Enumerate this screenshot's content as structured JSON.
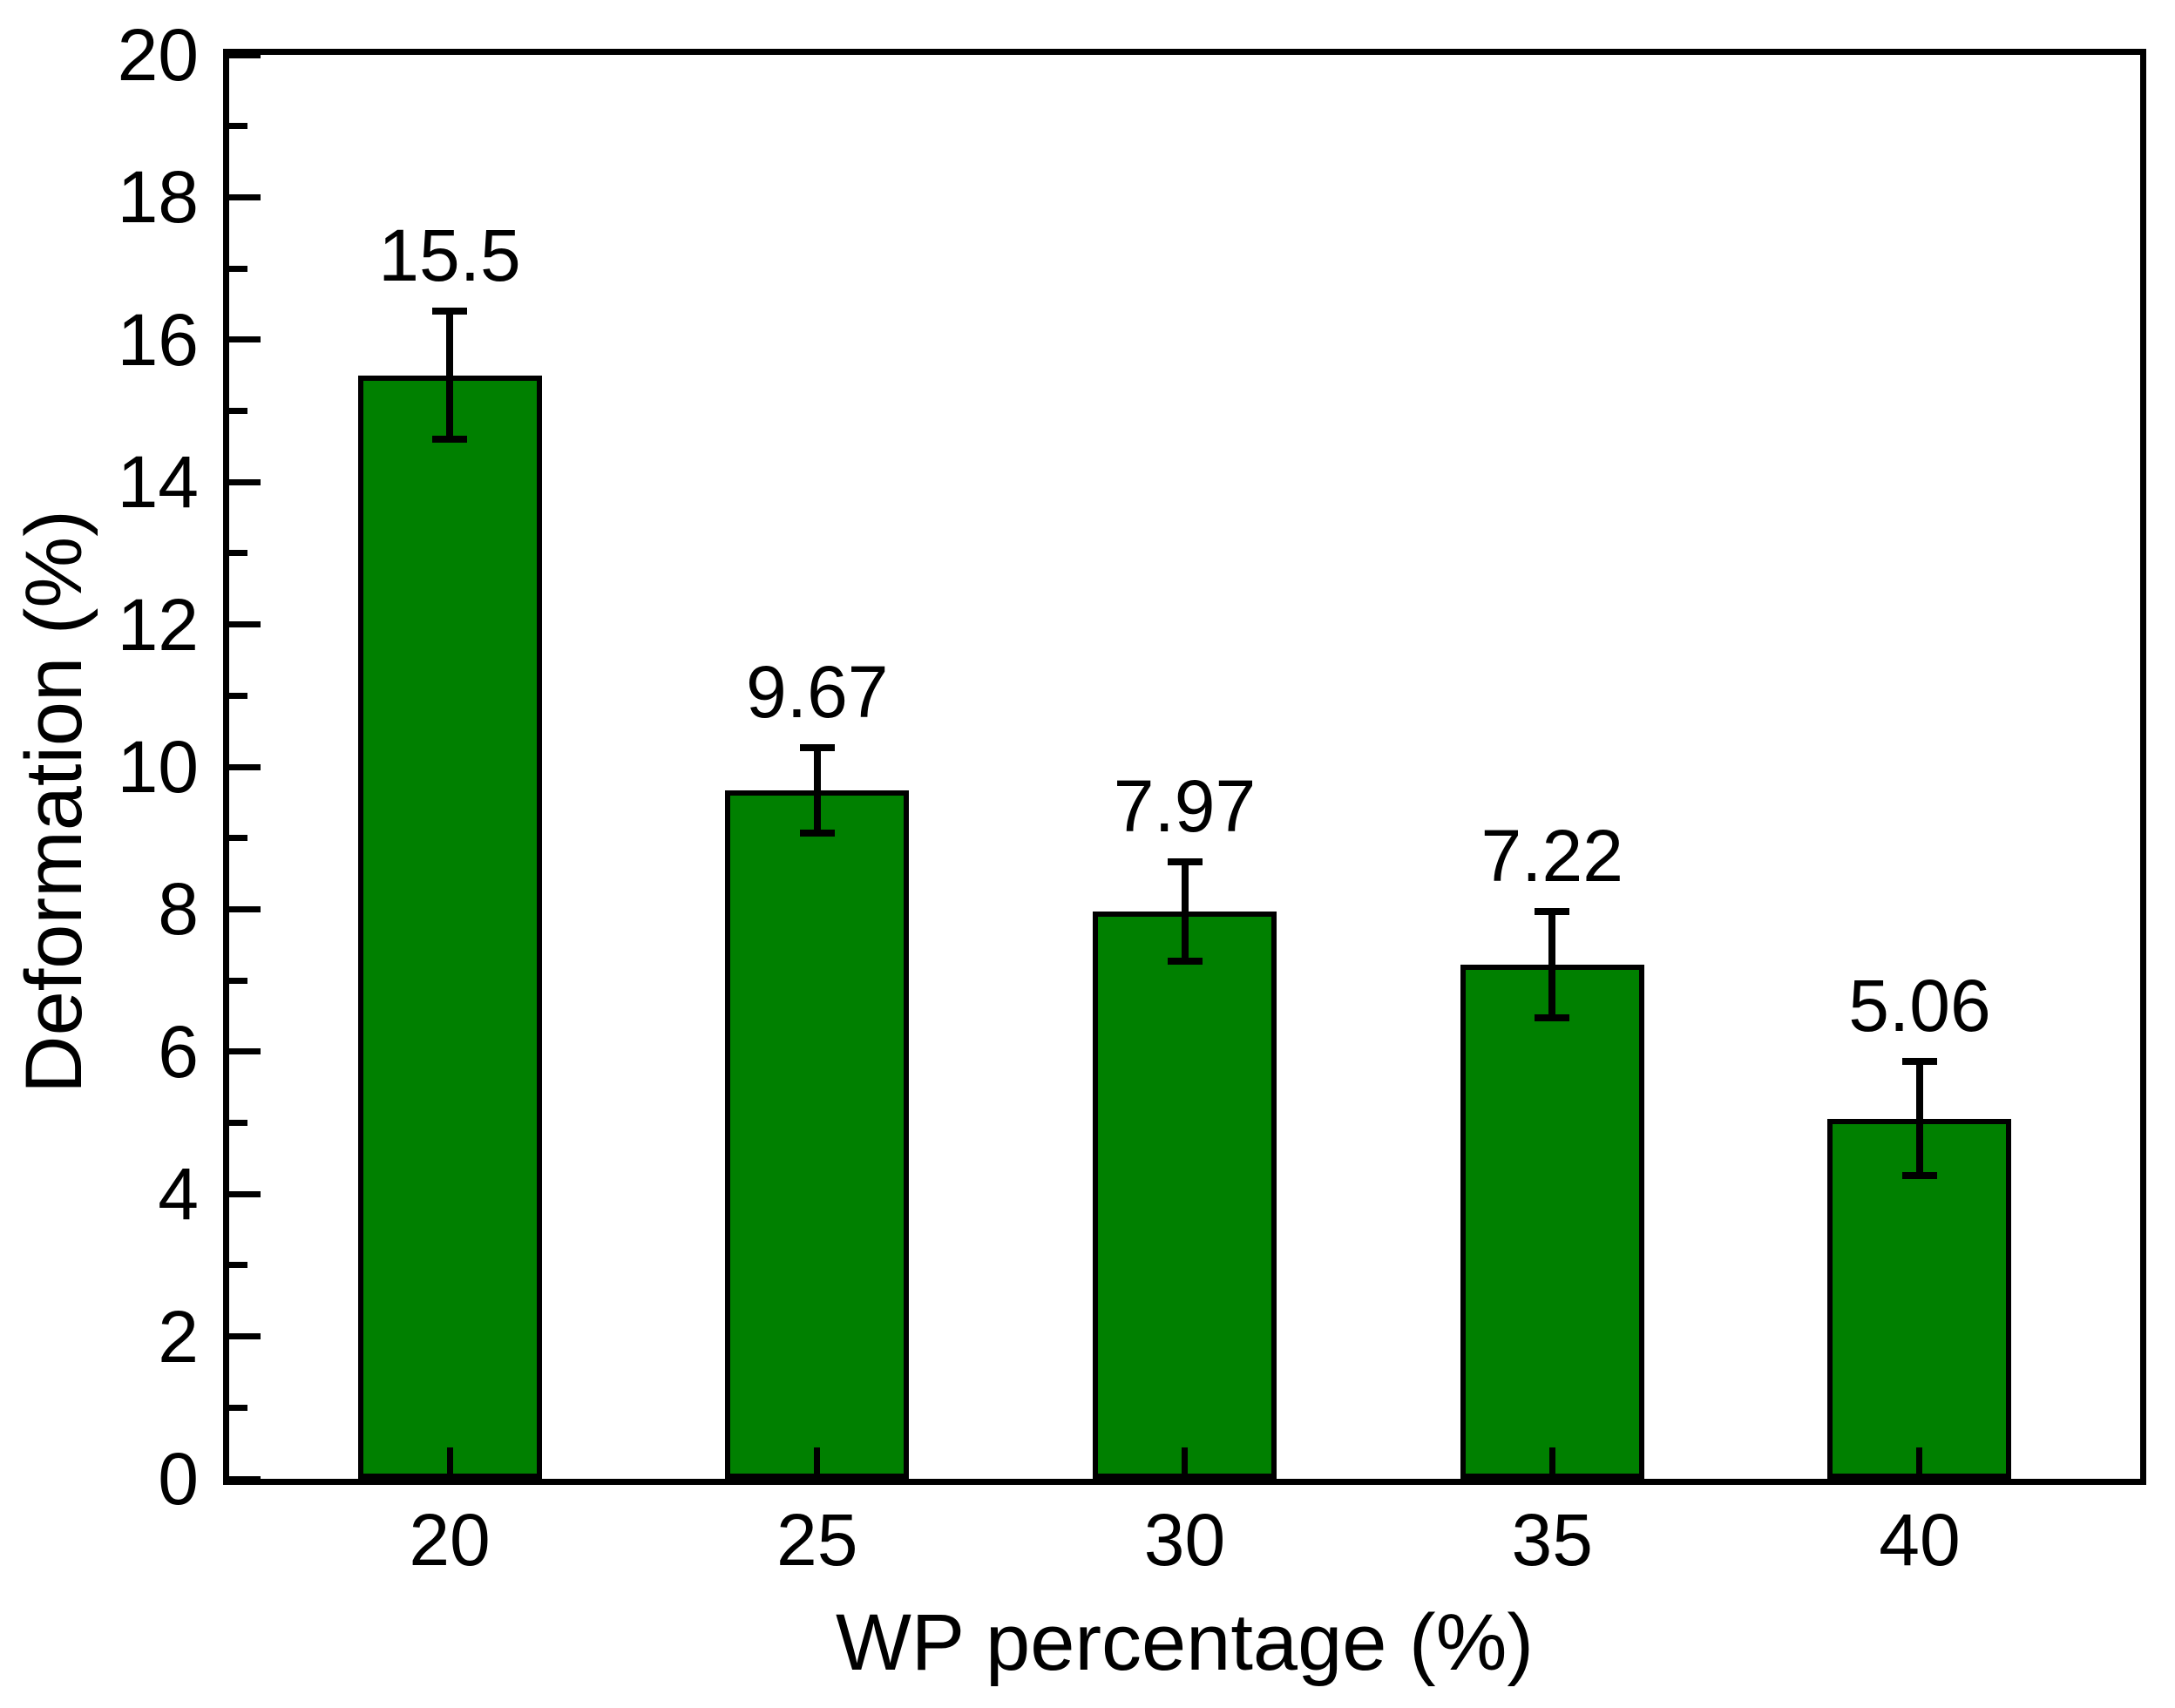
{
  "chart_data": {
    "type": "bar",
    "title": "",
    "xlabel": "WP percentage (%)",
    "ylabel": "Deformation (%)",
    "categories": [
      20,
      25,
      30,
      35,
      40
    ],
    "x_tick_labels": [
      "20",
      "25",
      "30",
      "35",
      "40"
    ],
    "values": [
      15.5,
      9.67,
      7.97,
      7.22,
      5.06
    ],
    "value_labels": [
      "15.5",
      "9.67",
      "7.97",
      "7.22",
      "5.06"
    ],
    "errors": [
      0.9,
      0.6,
      0.7,
      0.75,
      0.8
    ],
    "y_major_ticks": [
      0,
      2,
      4,
      6,
      8,
      10,
      12,
      14,
      16,
      18,
      20
    ],
    "y_tick_labels": [
      "0",
      "2",
      "4",
      "6",
      "8",
      "10",
      "12",
      "14",
      "16",
      "18",
      "20"
    ],
    "y_minor_ticks": [
      1,
      3,
      5,
      7,
      9,
      11,
      13,
      15,
      17,
      19
    ],
    "xlim": [
      17,
      43
    ],
    "ylim": [
      0,
      20
    ],
    "bar_width_x_units": 2.5,
    "grid": false,
    "legend": null,
    "bar_fill_color": "#008000",
    "bar_border_color": "#000000",
    "axis_color": "#000000",
    "background_color": "#ffffff",
    "error_bar_color": "#000000",
    "tick_direction": "in"
  }
}
